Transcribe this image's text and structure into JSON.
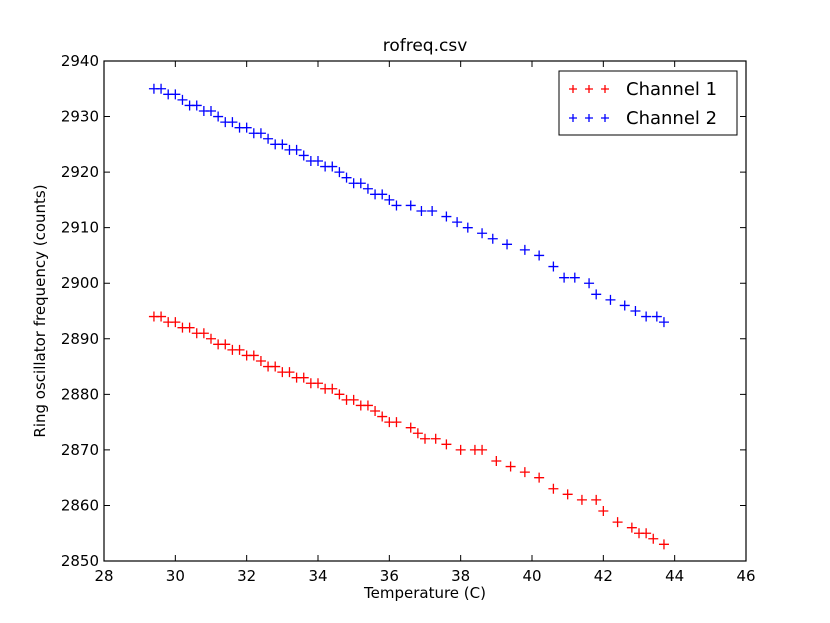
{
  "chart_data": {
    "type": "scatter",
    "title": "rofreq.csv",
    "xlabel": "Temperature (C)",
    "ylabel": "Ring oscillator frequency (counts)",
    "xlim": [
      28,
      46
    ],
    "ylim": [
      2850,
      2940
    ],
    "xticks": [
      28,
      30,
      32,
      34,
      36,
      38,
      40,
      42,
      44,
      46
    ],
    "yticks": [
      2850,
      2860,
      2870,
      2880,
      2890,
      2900,
      2910,
      2920,
      2930,
      2940
    ],
    "marker": "+",
    "grid": false,
    "legend_position": "top-right",
    "series": [
      {
        "name": "Channel 1",
        "color": "#ff0000",
        "points": [
          [
            29.4,
            2894
          ],
          [
            29.6,
            2894
          ],
          [
            29.8,
            2893
          ],
          [
            30.0,
            2893
          ],
          [
            30.2,
            2892
          ],
          [
            30.4,
            2892
          ],
          [
            30.6,
            2891
          ],
          [
            30.8,
            2891
          ],
          [
            31.0,
            2890
          ],
          [
            31.2,
            2889
          ],
          [
            31.4,
            2889
          ],
          [
            31.6,
            2888
          ],
          [
            31.8,
            2888
          ],
          [
            32.0,
            2887
          ],
          [
            32.2,
            2887
          ],
          [
            32.4,
            2886
          ],
          [
            32.6,
            2885
          ],
          [
            32.8,
            2885
          ],
          [
            33.0,
            2884
          ],
          [
            33.2,
            2884
          ],
          [
            33.4,
            2883
          ],
          [
            33.6,
            2883
          ],
          [
            33.8,
            2882
          ],
          [
            34.0,
            2882
          ],
          [
            34.2,
            2881
          ],
          [
            34.4,
            2881
          ],
          [
            34.6,
            2880
          ],
          [
            34.8,
            2879
          ],
          [
            35.0,
            2879
          ],
          [
            35.2,
            2878
          ],
          [
            35.4,
            2878
          ],
          [
            35.6,
            2877
          ],
          [
            35.8,
            2876
          ],
          [
            36.0,
            2875
          ],
          [
            36.2,
            2875
          ],
          [
            36.6,
            2874
          ],
          [
            36.8,
            2873
          ],
          [
            37.0,
            2872
          ],
          [
            37.3,
            2872
          ],
          [
            37.6,
            2871
          ],
          [
            38.0,
            2870
          ],
          [
            38.4,
            2870
          ],
          [
            38.6,
            2870
          ],
          [
            39.0,
            2868
          ],
          [
            39.4,
            2867
          ],
          [
            39.8,
            2866
          ],
          [
            40.2,
            2865
          ],
          [
            40.6,
            2863
          ],
          [
            41.0,
            2862
          ],
          [
            41.4,
            2861
          ],
          [
            41.8,
            2861
          ],
          [
            42.0,
            2859
          ],
          [
            42.4,
            2857
          ],
          [
            42.8,
            2856
          ],
          [
            43.0,
            2855
          ],
          [
            43.2,
            2855
          ],
          [
            43.4,
            2854
          ],
          [
            43.7,
            2853
          ]
        ]
      },
      {
        "name": "Channel 2",
        "color": "#0000ff",
        "points": [
          [
            29.4,
            2935
          ],
          [
            29.6,
            2935
          ],
          [
            29.8,
            2934
          ],
          [
            30.0,
            2934
          ],
          [
            30.2,
            2933
          ],
          [
            30.4,
            2932
          ],
          [
            30.6,
            2932
          ],
          [
            30.8,
            2931
          ],
          [
            31.0,
            2931
          ],
          [
            31.2,
            2930
          ],
          [
            31.4,
            2929
          ],
          [
            31.6,
            2929
          ],
          [
            31.8,
            2928
          ],
          [
            32.0,
            2928
          ],
          [
            32.2,
            2927
          ],
          [
            32.4,
            2927
          ],
          [
            32.6,
            2926
          ],
          [
            32.8,
            2925
          ],
          [
            33.0,
            2925
          ],
          [
            33.2,
            2924
          ],
          [
            33.4,
            2924
          ],
          [
            33.6,
            2923
          ],
          [
            33.8,
            2922
          ],
          [
            34.0,
            2922
          ],
          [
            34.2,
            2921
          ],
          [
            34.4,
            2921
          ],
          [
            34.6,
            2920
          ],
          [
            34.8,
            2919
          ],
          [
            35.0,
            2918
          ],
          [
            35.2,
            2918
          ],
          [
            35.4,
            2917
          ],
          [
            35.6,
            2916
          ],
          [
            35.8,
            2916
          ],
          [
            36.0,
            2915
          ],
          [
            36.2,
            2914
          ],
          [
            36.6,
            2914
          ],
          [
            36.9,
            2913
          ],
          [
            37.2,
            2913
          ],
          [
            37.6,
            2912
          ],
          [
            37.9,
            2911
          ],
          [
            38.2,
            2910
          ],
          [
            38.6,
            2909
          ],
          [
            38.9,
            2908
          ],
          [
            39.3,
            2907
          ],
          [
            39.8,
            2906
          ],
          [
            40.2,
            2905
          ],
          [
            40.6,
            2903
          ],
          [
            40.9,
            2901
          ],
          [
            41.2,
            2901
          ],
          [
            41.6,
            2900
          ],
          [
            41.8,
            2898
          ],
          [
            42.2,
            2897
          ],
          [
            42.6,
            2896
          ],
          [
            42.9,
            2895
          ],
          [
            43.2,
            2894
          ],
          [
            43.5,
            2894
          ],
          [
            43.7,
            2893
          ]
        ]
      }
    ]
  }
}
